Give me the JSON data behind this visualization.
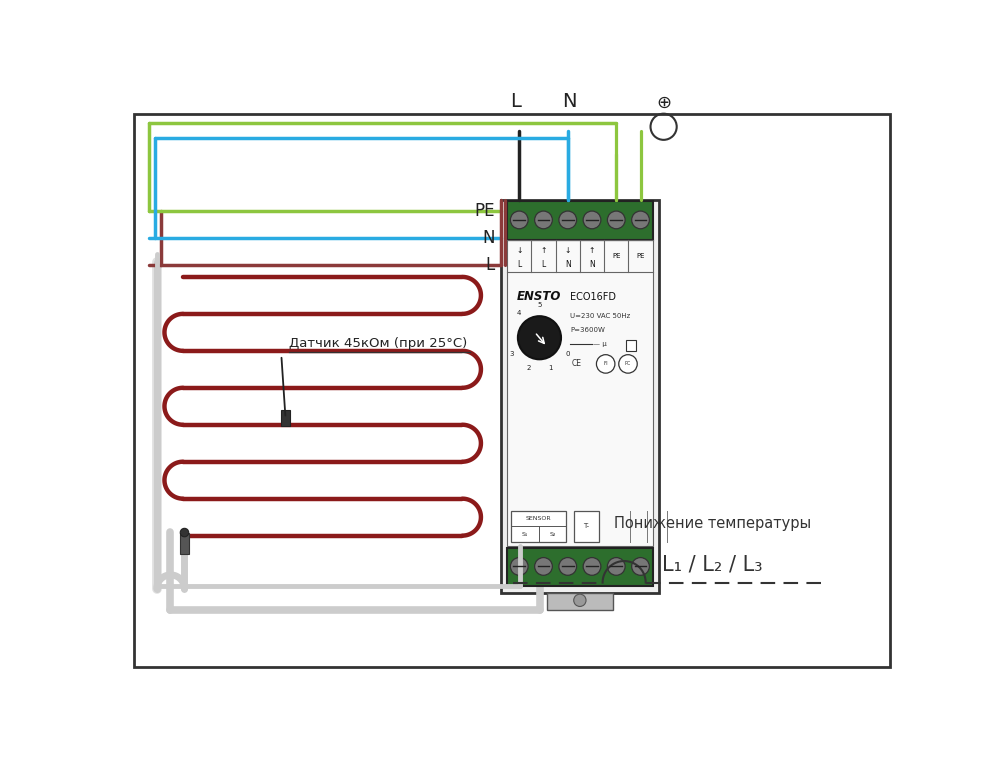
{
  "bg_color": "#ffffff",
  "wire_colors": {
    "green_yellow": "#8dc63f",
    "blue": "#29abe2",
    "brown": "#8b3a3a",
    "gray": "#999999",
    "white_sheath": "#dddddd",
    "black": "#222222",
    "green_terminal": "#2d6e2d",
    "red_coil": "#8b1a1a"
  },
  "label_sensor": "Датчик 45кОм (при 25°C)",
  "label_PE": "PE",
  "label_N": "N",
  "label_L": "L",
  "label_L_top": "L",
  "label_N_top": "N",
  "label_earth_top": "⊕",
  "label_lower_temp": "Понижение температуры",
  "label_L123": "L₁ / L₂ / L₃"
}
